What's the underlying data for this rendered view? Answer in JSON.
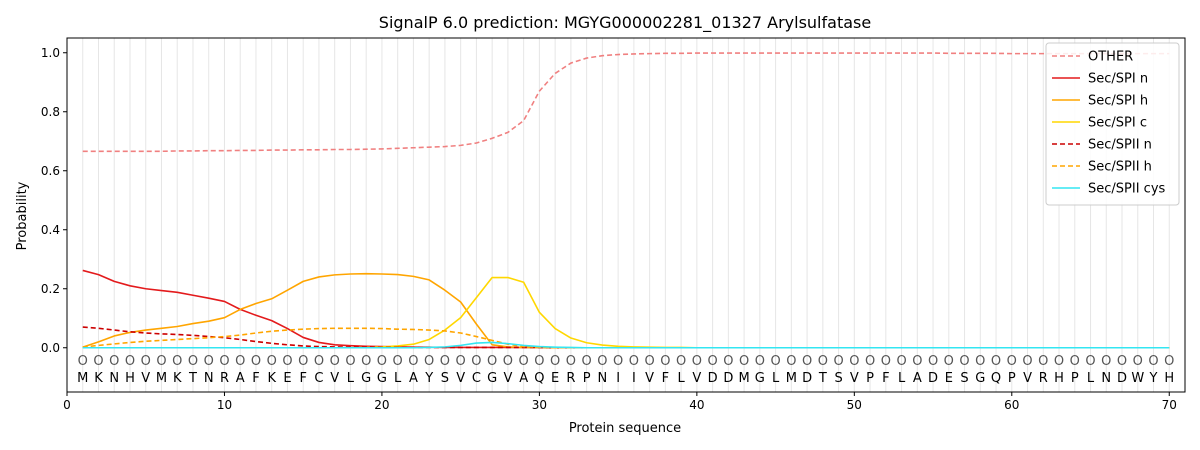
{
  "chart_data": {
    "type": "line",
    "title": "SignalP 6.0 prediction: MGYG000002281_01327 Arylsulfatase",
    "xlabel": "Protein sequence",
    "ylabel": "Probability",
    "xlim": [
      0,
      71
    ],
    "ylim": [
      -0.15,
      1.05
    ],
    "xticks": [
      0,
      10,
      20,
      30,
      40,
      50,
      60,
      70
    ],
    "yticks": [
      0.0,
      0.2,
      0.4,
      0.6,
      0.8,
      1.0
    ],
    "grid": "vertical lines at each residue",
    "legend_position": "top-right",
    "sequence": [
      "M",
      "K",
      "N",
      "H",
      "V",
      "M",
      "K",
      "T",
      "N",
      "R",
      "A",
      "F",
      "K",
      "E",
      "F",
      "C",
      "V",
      "L",
      "G",
      "G",
      "L",
      "A",
      "Y",
      "S",
      "V",
      "C",
      "G",
      "V",
      "A",
      "Q",
      "E",
      "R",
      "P",
      "N",
      "I",
      "I",
      "V",
      "F",
      "L",
      "V",
      "D",
      "D",
      "M",
      "G",
      "L",
      "M",
      "D",
      "T",
      "S",
      "V",
      "P",
      "F",
      "L",
      "A",
      "D",
      "E",
      "S",
      "G",
      "Q",
      "P",
      "V",
      "R",
      "H",
      "P",
      "L",
      "N",
      "D",
      "W",
      "Y",
      "H"
    ],
    "marker_symbol": "O",
    "x": [
      1,
      2,
      3,
      4,
      5,
      6,
      7,
      8,
      9,
      10,
      11,
      12,
      13,
      14,
      15,
      16,
      17,
      18,
      19,
      20,
      21,
      22,
      23,
      24,
      25,
      26,
      27,
      28,
      29,
      30,
      31,
      32,
      33,
      34,
      35,
      36,
      37,
      38,
      39,
      40,
      41,
      42,
      43,
      44,
      45,
      46,
      47,
      48,
      49,
      50,
      51,
      52,
      53,
      54,
      55,
      56,
      57,
      58,
      59,
      60,
      61,
      62,
      63,
      64,
      65,
      66,
      67,
      68,
      69,
      70
    ],
    "series": [
      {
        "name": "OTHER",
        "color": "#f08080",
        "dash": "dashed",
        "values": [
          0.666,
          0.666,
          0.666,
          0.666,
          0.666,
          0.666,
          0.667,
          0.667,
          0.668,
          0.668,
          0.669,
          0.669,
          0.67,
          0.67,
          0.671,
          0.671,
          0.672,
          0.672,
          0.673,
          0.674,
          0.676,
          0.678,
          0.68,
          0.682,
          0.686,
          0.694,
          0.71,
          0.73,
          0.77,
          0.87,
          0.93,
          0.965,
          0.982,
          0.99,
          0.994,
          0.996,
          0.997,
          0.998,
          0.998,
          0.999,
          0.999,
          0.999,
          0.999,
          0.999,
          0.999,
          0.999,
          0.999,
          0.999,
          0.999,
          0.999,
          0.999,
          0.999,
          0.999,
          0.999,
          0.999,
          0.998,
          0.998,
          0.998,
          0.998,
          0.997,
          0.997,
          0.997,
          0.997,
          0.997,
          0.997,
          0.997,
          0.997,
          0.997,
          0.997,
          0.997
        ]
      },
      {
        "name": "Sec/SPI n",
        "color": "#e31a1c",
        "dash": "solid",
        "values": [
          0.262,
          0.248,
          0.225,
          0.21,
          0.2,
          0.194,
          0.188,
          0.178,
          0.168,
          0.157,
          0.13,
          0.11,
          0.092,
          0.065,
          0.035,
          0.018,
          0.01,
          0.007,
          0.005,
          0.004,
          0.003,
          0.002,
          0.002,
          0.001,
          0.001,
          0.001,
          0.001,
          0.001,
          0.001,
          0.001,
          0,
          0,
          0,
          0,
          0,
          0,
          0,
          0,
          0,
          0,
          0,
          0,
          0,
          0,
          0,
          0,
          0,
          0,
          0,
          0,
          0,
          0,
          0,
          0,
          0,
          0,
          0,
          0,
          0,
          0,
          0,
          0,
          0,
          0,
          0,
          0,
          0,
          0,
          0,
          0
        ]
      },
      {
        "name": "Sec/SPI h",
        "color": "#ffa500",
        "dash": "solid",
        "values": [
          0.002,
          0.02,
          0.04,
          0.052,
          0.06,
          0.066,
          0.072,
          0.082,
          0.09,
          0.102,
          0.13,
          0.15,
          0.166,
          0.195,
          0.225,
          0.24,
          0.247,
          0.25,
          0.251,
          0.25,
          0.248,
          0.242,
          0.23,
          0.195,
          0.155,
          0.08,
          0.01,
          0.003,
          0.001,
          0.001,
          0,
          0,
          0,
          0,
          0,
          0,
          0,
          0,
          0,
          0,
          0,
          0,
          0,
          0,
          0,
          0,
          0,
          0,
          0,
          0,
          0,
          0,
          0,
          0,
          0,
          0,
          0,
          0,
          0,
          0,
          0,
          0,
          0,
          0,
          0,
          0,
          0,
          0,
          0,
          0
        ]
      },
      {
        "name": "Sec/SPI c",
        "color": "#ffd700",
        "dash": "solid",
        "values": [
          0,
          0,
          0,
          0,
          0,
          0,
          0,
          0,
          0,
          0,
          0,
          0,
          0,
          0,
          0,
          0,
          0,
          0,
          0.001,
          0.003,
          0.006,
          0.012,
          0.028,
          0.06,
          0.102,
          0.17,
          0.238,
          0.238,
          0.222,
          0.12,
          0.065,
          0.033,
          0.017,
          0.009,
          0.005,
          0.003,
          0.002,
          0.001,
          0.001,
          0,
          0,
          0,
          0,
          0,
          0,
          0,
          0,
          0,
          0,
          0,
          0,
          0,
          0,
          0,
          0,
          0,
          0,
          0,
          0,
          0,
          0,
          0,
          0,
          0,
          0,
          0,
          0,
          0,
          0,
          0
        ]
      },
      {
        "name": "Sec/SPII n",
        "color": "#cc0000",
        "dash": "dashed",
        "values": [
          0.07,
          0.066,
          0.06,
          0.054,
          0.05,
          0.047,
          0.045,
          0.042,
          0.038,
          0.034,
          0.028,
          0.021,
          0.015,
          0.01,
          0.006,
          0.004,
          0.003,
          0.002,
          0.002,
          0.001,
          0.001,
          0.001,
          0.001,
          0.001,
          0.001,
          0.001,
          0.001,
          0.001,
          0.001,
          0.001,
          0,
          0,
          0,
          0,
          0,
          0,
          0,
          0,
          0,
          0,
          0,
          0,
          0,
          0,
          0,
          0,
          0,
          0,
          0,
          0,
          0,
          0,
          0,
          0,
          0,
          0,
          0,
          0,
          0,
          0,
          0,
          0,
          0,
          0,
          0,
          0,
          0,
          0,
          0,
          0
        ]
      },
      {
        "name": "Sec/SPII h",
        "color": "#ffa500",
        "dash": "dashed",
        "values": [
          0.002,
          0.008,
          0.013,
          0.018,
          0.022,
          0.025,
          0.028,
          0.031,
          0.034,
          0.038,
          0.043,
          0.05,
          0.056,
          0.06,
          0.063,
          0.065,
          0.066,
          0.066,
          0.066,
          0.065,
          0.063,
          0.062,
          0.06,
          0.057,
          0.05,
          0.038,
          0.025,
          0.012,
          0.004,
          0.002,
          0,
          0,
          0,
          0,
          0,
          0,
          0,
          0,
          0,
          0,
          0,
          0,
          0,
          0,
          0,
          0,
          0,
          0,
          0,
          0,
          0,
          0,
          0,
          0,
          0,
          0,
          0,
          0,
          0,
          0,
          0,
          0,
          0,
          0,
          0,
          0,
          0,
          0,
          0,
          0
        ]
      },
      {
        "name": "Sec/SPII cys",
        "color": "#33e6f2",
        "dash": "solid",
        "values": [
          0,
          0,
          0,
          0,
          0,
          0,
          0,
          0,
          0,
          0,
          0,
          0,
          0,
          0,
          0,
          0,
          0,
          0,
          0,
          0,
          0,
          0,
          0.001,
          0.003,
          0.008,
          0.016,
          0.018,
          0.014,
          0.008,
          0.004,
          0.002,
          0.001,
          0,
          0,
          0,
          0,
          0,
          0,
          0,
          0,
          0,
          0,
          0,
          0,
          0,
          0,
          0,
          0,
          0,
          0,
          0,
          0,
          0,
          0,
          0,
          0,
          0,
          0,
          0,
          0,
          0,
          0,
          0,
          0,
          0,
          0,
          0,
          0,
          0,
          0
        ]
      }
    ]
  }
}
